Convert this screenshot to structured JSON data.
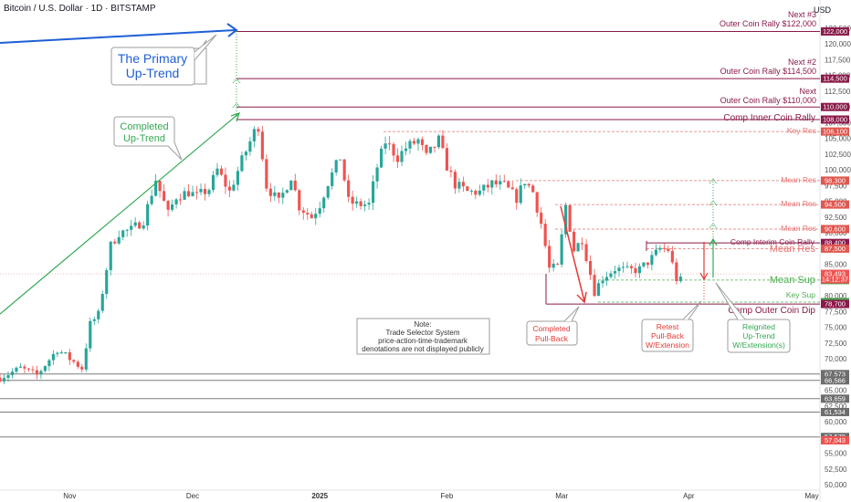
{
  "header": {
    "title": "Bitcoin / U.S. Dollar · 1D · BITSTAMP",
    "currency": "USD"
  },
  "colors": {
    "up": "#26a69a",
    "down": "#ef5350",
    "resistance": "#8b1a4a",
    "resistance_dash": "#e57373",
    "support": "#4caf50",
    "blue": "#1e5fd6",
    "gray_line": "#7d7d7d"
  },
  "chart_data": {
    "type": "candlestick",
    "ylim": [
      49000,
      125000
    ],
    "y_ticks": [
      50000,
      52500,
      55000,
      57500,
      60000,
      62500,
      65000,
      67500,
      70000,
      72500,
      75000,
      77500,
      80000,
      82500,
      85000,
      87500,
      90000,
      92500,
      95000,
      97500,
      100000,
      102500,
      105000,
      107500,
      110000,
      112500,
      115000,
      117500,
      120000,
      122500
    ],
    "y_tick_labels": [
      "50,000",
      "52,500",
      "55,000",
      "57,500",
      "60,000",
      "62,500",
      "65,000",
      "67,500",
      "70,000",
      "72,500",
      "75,000",
      "77,500",
      "80,000",
      "82,500",
      "85,000",
      "87,500",
      "90,000",
      "92,500",
      "95,000",
      "97,500",
      "100,000",
      "102,500",
      "105,000",
      "107,500",
      "110,000",
      "112,500",
      "115,000",
      "117,500",
      "120,000",
      "122,500"
    ],
    "x_ticks": [
      {
        "label": "Nov",
        "date": "2024-11-01",
        "bold": false
      },
      {
        "label": "Dec",
        "date": "2024-12-01",
        "bold": false
      },
      {
        "label": "2025",
        "date": "2025-01-01",
        "bold": true
      },
      {
        "label": "Feb",
        "date": "2025-02-01",
        "bold": false
      },
      {
        "label": "Mar",
        "date": "2025-03-01",
        "bold": false
      },
      {
        "label": "Apr",
        "date": "2025-04-01",
        "bold": false
      },
      {
        "label": "May",
        "date": "2025-05-01",
        "bold": false
      }
    ],
    "x_range": [
      "2024-10-15",
      "2025-05-03"
    ],
    "close_path": [
      [
        "2024-10-15",
        67000
      ],
      [
        "2024-10-20",
        68500
      ],
      [
        "2024-10-24",
        67400
      ],
      [
        "2024-10-29",
        71500
      ],
      [
        "2024-11-01",
        70000
      ],
      [
        "2024-11-04",
        68500
      ],
      [
        "2024-11-06",
        75500
      ],
      [
        "2024-11-08",
        77000
      ],
      [
        "2024-11-11",
        88000
      ],
      [
        "2024-11-13",
        90000
      ],
      [
        "2024-11-16",
        90500
      ],
      [
        "2024-11-19",
        92000
      ],
      [
        "2024-11-22",
        98500
      ],
      [
        "2024-11-25",
        93000
      ],
      [
        "2024-11-27",
        95800
      ],
      [
        "2024-11-30",
        96500
      ],
      [
        "2024-12-02",
        95800
      ],
      [
        "2024-12-05",
        97000
      ],
      [
        "2024-12-07",
        100000
      ],
      [
        "2024-12-10",
        96500
      ],
      [
        "2024-12-13",
        101500
      ],
      [
        "2024-12-16",
        106000
      ],
      [
        "2024-12-17",
        107000
      ],
      [
        "2024-12-19",
        97500
      ],
      [
        "2024-12-22",
        94800
      ],
      [
        "2024-12-25",
        99000
      ],
      [
        "2024-12-27",
        94200
      ],
      [
        "2024-12-30",
        92500
      ],
      [
        "2025-01-01",
        94500
      ],
      [
        "2025-01-03",
        98000
      ],
      [
        "2025-01-06",
        102000
      ],
      [
        "2025-01-08",
        95000
      ],
      [
        "2025-01-10",
        94500
      ],
      [
        "2025-01-13",
        94500
      ],
      [
        "2025-01-15",
        100500
      ],
      [
        "2025-01-17",
        104500
      ],
      [
        "2025-01-20",
        102000
      ],
      [
        "2025-01-22",
        103500
      ],
      [
        "2025-01-25",
        104700
      ],
      [
        "2025-01-27",
        102000
      ],
      [
        "2025-01-30",
        104700
      ],
      [
        "2025-02-01",
        100600
      ],
      [
        "2025-02-03",
        97700
      ],
      [
        "2025-02-06",
        96500
      ],
      [
        "2025-02-09",
        96500
      ],
      [
        "2025-02-12",
        97800
      ],
      [
        "2025-02-15",
        97500
      ],
      [
        "2025-02-18",
        95500
      ],
      [
        "2025-02-20",
        98300
      ],
      [
        "2025-02-22",
        96500
      ],
      [
        "2025-02-24",
        91500
      ],
      [
        "2025-02-26",
        84300
      ],
      [
        "2025-02-28",
        84500
      ],
      [
        "2025-03-02",
        94300
      ],
      [
        "2025-03-04",
        87300
      ],
      [
        "2025-03-06",
        89000
      ],
      [
        "2025-03-09",
        80700
      ],
      [
        "2025-03-11",
        82900
      ],
      [
        "2025-03-14",
        84300
      ],
      [
        "2025-03-17",
        84000
      ],
      [
        "2025-03-20",
        84200
      ],
      [
        "2025-03-23",
        86000
      ],
      [
        "2025-03-25",
        87500
      ],
      [
        "2025-03-27",
        87300
      ],
      [
        "2025-03-29",
        82700
      ],
      [
        "2025-03-30",
        82400
      ]
    ],
    "horizontal_levels": [
      {
        "name": "next-3-level",
        "price": 122000,
        "style": "solid",
        "color": "#8b1a4a",
        "badge": "122,000"
      },
      {
        "name": "next-2-level",
        "price": 114500,
        "style": "solid",
        "color": "#8b1a4a",
        "badge": "114,500"
      },
      {
        "name": "next-level",
        "price": 110000,
        "style": "solid",
        "color": "#8b1a4a",
        "badge": "110,000"
      },
      {
        "name": "comp-inner-coin-rally-level",
        "price": 108000,
        "style": "solid",
        "color": "#8b1a4a",
        "badge": "108,000"
      },
      {
        "name": "key-res-level",
        "price": 106100,
        "style": "dashed",
        "color": "#e57373",
        "badge": "106,100"
      },
      {
        "name": "mean-res-98-level",
        "price": 98300,
        "style": "dashed",
        "color": "#e57373",
        "badge": "98,300"
      },
      {
        "name": "mean-res-94-level",
        "price": 94500,
        "style": "dashed",
        "color": "#e57373",
        "badge": "94,500"
      },
      {
        "name": "mean-res-90-level",
        "price": 90600,
        "style": "dashed",
        "color": "#e57373",
        "badge": "90,600"
      },
      {
        "name": "comp-interim-coin-rally-level",
        "price": 88400,
        "style": "solid",
        "color": "#8b1a4a",
        "badge": "88,400"
      },
      {
        "name": "mean-res-87-level",
        "price": 87500,
        "style": "dashed",
        "color": "#e57373",
        "badge": "87,500"
      },
      {
        "name": "mean-sup-level",
        "price": 82500,
        "style": "dashed",
        "color": "#4caf50",
        "badge": "82,500"
      },
      {
        "name": "key-sup-level",
        "price": 79000,
        "style": "dashed",
        "color": "#4caf50",
        "badge": "79,000"
      },
      {
        "name": "comp-outer-coin-dip-level",
        "price": 78700,
        "style": "solid",
        "color": "#8b1a4a",
        "badge": "78,700"
      },
      {
        "name": "gray-67573-level",
        "price": 67573,
        "style": "solid",
        "color": "#7d7d7d",
        "badge": "67,573"
      },
      {
        "name": "gray-66566-level",
        "price": 66566,
        "style": "solid",
        "color": "#7d7d7d",
        "badge": "66,566"
      },
      {
        "name": "gray-63659-level",
        "price": 63659,
        "style": "solid",
        "color": "#7d7d7d",
        "badge": "63,659"
      },
      {
        "name": "gray-61534-level",
        "price": 61534,
        "style": "solid",
        "color": "#7d7d7d",
        "badge": "61,534"
      },
      {
        "name": "gray-57578-level",
        "price": 57578,
        "style": "solid",
        "color": "#7d7d7d",
        "badge": "57,578"
      }
    ],
    "extra_badges": [
      {
        "name": "price-83493-badge",
        "price": 83493,
        "text": "83,493",
        "sub": "14:12:37",
        "color": "#ef5350"
      },
      {
        "name": "price-57043-badge",
        "price": 57043,
        "text": "57,043",
        "color": "#ef5350"
      }
    ],
    "current_price": 83493
  },
  "annotations": {
    "next3_line1": "Next #3",
    "next3_line2": "Outer Coin Rally $122,000",
    "next2_line1": "Next #2",
    "next2_line2": "Outer Coin Rally $114,500",
    "next1_line1": "Next",
    "next1_line2": "Outer Coin Rally $110,000",
    "comp_inner": "Comp Inner Coin Rally",
    "key_res": "Key Res",
    "mean_res": "Mean Res",
    "comp_interim": "Comp Interim Coin Rally",
    "mean_sup": "Mean Sup",
    "key_sup": "Key Sup",
    "comp_outer_dip": "Comp Outer Coin Dip",
    "primary_line1": "The Primary",
    "primary_line2": "Up-Trend",
    "completed_line1": "Completed",
    "completed_line2": "Up-Trend",
    "note_line1": "Note:",
    "note_line2": "Trade Selector System",
    "note_line3": "price-action-time-trademark",
    "note_line4": "denotations are not displayed publicly",
    "pullback_line1": "Completed",
    "pullback_line2": "Pull-Back",
    "retest_line1": "Retest",
    "retest_line2": "Pull-Back",
    "retest_line3": "W/Extension",
    "reignited_line1": "Reignited",
    "reignited_line2": "Up-Trend",
    "reignited_line3": "W/Extension(s)"
  }
}
